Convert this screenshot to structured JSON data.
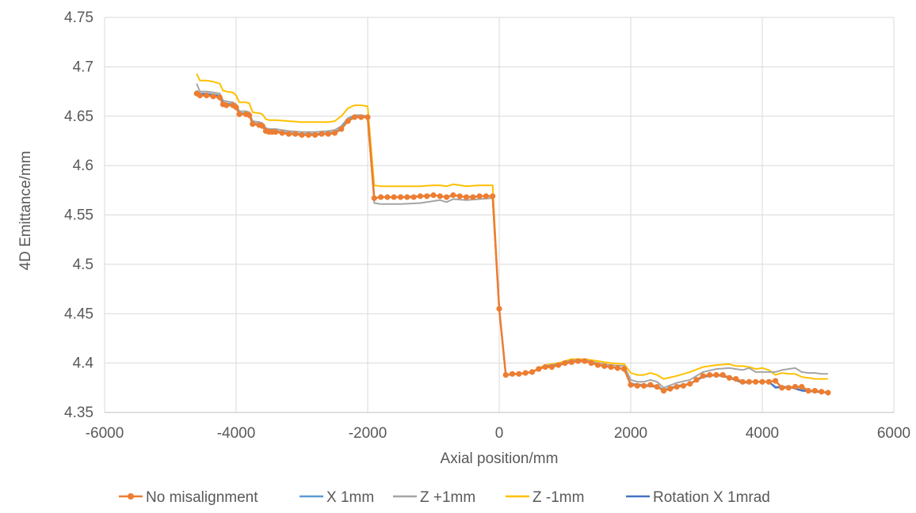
{
  "chart_data": {
    "type": "line",
    "title": "",
    "xlabel": "Axial position/mm",
    "ylabel": "4D Emittance/mm",
    "xlim": [
      -6000,
      6000
    ],
    "ylim": [
      4.35,
      4.75
    ],
    "x_ticks": [
      "-6000",
      "-4000",
      "-2000",
      "0",
      "2000",
      "4000",
      "6000"
    ],
    "y_ticks": [
      "4.35",
      "4.4",
      "4.45",
      "4.5",
      "4.55",
      "4.6",
      "4.65",
      "4.7",
      "4.75"
    ],
    "grid": "both",
    "legend_position": "bottom",
    "series": [
      {
        "name": "No misalignment",
        "color": "#ED7D31",
        "marker": "circle",
        "x": [
          -4600,
          -4550,
          -4450,
          -4350,
          -4250,
          -4200,
          -4150,
          -4050,
          -4000,
          -3950,
          -3850,
          -3800,
          -3750,
          -3650,
          -3600,
          -3550,
          -3500,
          -3450,
          -3400,
          -3300,
          -3200,
          -3100,
          -3000,
          -2900,
          -2800,
          -2700,
          -2600,
          -2500,
          -2400,
          -2300,
          -2200,
          -2100,
          -2000,
          -1900,
          -1800,
          -1700,
          -1600,
          -1500,
          -1400,
          -1300,
          -1200,
          -1100,
          -1000,
          -900,
          -800,
          -700,
          -600,
          -500,
          -400,
          -300,
          -200,
          -100,
          0,
          100,
          200,
          300,
          400,
          500,
          600,
          700,
          800,
          900,
          1000,
          1100,
          1200,
          1300,
          1400,
          1500,
          1600,
          1700,
          1800,
          1900,
          2000,
          2100,
          2200,
          2300,
          2400,
          2500,
          2600,
          2700,
          2800,
          2900,
          3000,
          3100,
          3200,
          3300,
          3400,
          3500,
          3600,
          3700,
          3800,
          3900,
          4000,
          4100,
          4200,
          4300,
          4400,
          4500,
          4600,
          4700,
          4800,
          4900,
          5000
        ],
        "y": [
          4.673,
          4.671,
          4.671,
          4.67,
          4.669,
          4.662,
          4.661,
          4.661,
          4.659,
          4.652,
          4.652,
          4.651,
          4.642,
          4.641,
          4.64,
          4.635,
          4.634,
          4.634,
          4.634,
          4.633,
          4.632,
          4.632,
          4.631,
          4.631,
          4.631,
          4.632,
          4.632,
          4.633,
          4.637,
          4.645,
          4.649,
          4.649,
          4.649,
          4.567,
          4.568,
          4.568,
          4.568,
          4.568,
          4.568,
          4.568,
          4.569,
          4.569,
          4.57,
          4.569,
          4.568,
          4.57,
          4.569,
          4.568,
          4.568,
          4.569,
          4.569,
          4.569,
          4.455,
          4.388,
          4.389,
          4.389,
          4.39,
          4.391,
          4.394,
          4.396,
          4.396,
          4.398,
          4.4,
          4.401,
          4.402,
          4.402,
          4.4,
          4.398,
          4.397,
          4.396,
          4.395,
          4.394,
          4.378,
          4.377,
          4.377,
          4.378,
          4.376,
          4.372,
          4.374,
          4.376,
          4.377,
          4.379,
          4.383,
          4.387,
          4.388,
          4.388,
          4.388,
          4.385,
          4.384,
          4.381,
          4.381,
          4.381,
          4.381,
          4.381,
          4.382,
          4.375,
          4.375,
          4.376,
          4.376,
          4.372,
          4.372,
          4.371,
          4.37
        ]
      },
      {
        "name": "X 1mm",
        "color": "#5B9BD5",
        "x": [
          -4600,
          -4550,
          -4450,
          -4350,
          -4250,
          -4200,
          -4150,
          -4050,
          -4000,
          -3950,
          -3850,
          -3800,
          -3750,
          -3650,
          -3600,
          -3550,
          -3500,
          -3400,
          -3200,
          -3000,
          -2800,
          -2600,
          -2500,
          -2400,
          -2300,
          -2200,
          -2100,
          -2000,
          -1900,
          -1800,
          -1500,
          -1200,
          -1000,
          -900,
          -800,
          -700,
          -500,
          -300,
          -100,
          0,
          100,
          300,
          500,
          600,
          700,
          900,
          1100,
          1300,
          1500,
          1700,
          1900,
          2000,
          2200,
          2400,
          2500,
          2700,
          2900,
          3100,
          3300,
          3500,
          3700,
          3900,
          4100,
          4200,
          4400,
          4600,
          4800,
          5000
        ],
        "y": [
          4.676,
          4.673,
          4.673,
          4.672,
          4.671,
          4.664,
          4.663,
          4.662,
          4.66,
          4.653,
          4.653,
          4.652,
          4.643,
          4.642,
          4.641,
          4.636,
          4.635,
          4.635,
          4.633,
          4.632,
          4.632,
          4.633,
          4.634,
          4.638,
          4.646,
          4.65,
          4.65,
          4.649,
          4.567,
          4.568,
          4.568,
          4.569,
          4.57,
          4.569,
          4.568,
          4.57,
          4.568,
          4.569,
          4.569,
          4.455,
          4.388,
          4.389,
          4.391,
          4.394,
          4.396,
          4.398,
          4.401,
          4.402,
          4.398,
          4.396,
          4.394,
          4.379,
          4.378,
          4.377,
          4.373,
          4.377,
          4.379,
          4.386,
          4.388,
          4.386,
          4.381,
          4.381,
          4.381,
          4.376,
          4.376,
          4.373,
          4.371,
          4.37
        ]
      },
      {
        "name": "Z +1mm",
        "color": "#A5A5A5",
        "x": [
          -4600,
          -4550,
          -4450,
          -4350,
          -4250,
          -4200,
          -4150,
          -4050,
          -4000,
          -3950,
          -3850,
          -3800,
          -3750,
          -3650,
          -3600,
          -3550,
          -3500,
          -3400,
          -3200,
          -3000,
          -2800,
          -2600,
          -2500,
          -2400,
          -2300,
          -2200,
          -2100,
          -2000,
          -1900,
          -1800,
          -1500,
          -1200,
          -1000,
          -900,
          -800,
          -700,
          -500,
          -300,
          -100,
          0,
          100,
          300,
          500,
          600,
          700,
          900,
          1100,
          1300,
          1500,
          1700,
          1900,
          2000,
          2100,
          2200,
          2300,
          2400,
          2500,
          2700,
          2900,
          3100,
          3300,
          3500,
          3600,
          3700,
          3800,
          3900,
          4000,
          4100,
          4200,
          4300,
          4400,
          4500,
          4600,
          4700,
          4800,
          4900,
          5000
        ],
        "y": [
          4.683,
          4.675,
          4.675,
          4.674,
          4.673,
          4.666,
          4.665,
          4.664,
          4.662,
          4.655,
          4.655,
          4.654,
          4.645,
          4.644,
          4.643,
          4.638,
          4.637,
          4.637,
          4.635,
          4.634,
          4.634,
          4.635,
          4.636,
          4.64,
          4.648,
          4.651,
          4.651,
          4.65,
          4.562,
          4.561,
          4.561,
          4.562,
          4.564,
          4.565,
          4.563,
          4.566,
          4.565,
          4.566,
          4.567,
          4.455,
          4.388,
          4.389,
          4.391,
          4.394,
          4.397,
          4.399,
          4.403,
          4.403,
          4.4,
          4.398,
          4.397,
          4.383,
          4.381,
          4.381,
          4.383,
          4.381,
          4.375,
          4.38,
          4.383,
          4.391,
          4.394,
          4.395,
          4.394,
          4.393,
          4.395,
          4.391,
          4.391,
          4.391,
          4.391,
          4.393,
          4.394,
          4.395,
          4.391,
          4.39,
          4.39,
          4.389,
          4.389
        ]
      },
      {
        "name": "Z -1mm",
        "color": "#FFC000",
        "x": [
          -4600,
          -4550,
          -4450,
          -4350,
          -4250,
          -4200,
          -4150,
          -4050,
          -4000,
          -3950,
          -3850,
          -3800,
          -3750,
          -3650,
          -3600,
          -3550,
          -3500,
          -3400,
          -3200,
          -3000,
          -2800,
          -2600,
          -2500,
          -2400,
          -2300,
          -2200,
          -2100,
          -2000,
          -1900,
          -1800,
          -1500,
          -1200,
          -1000,
          -900,
          -800,
          -700,
          -500,
          -300,
          -100,
          0,
          100,
          300,
          500,
          600,
          700,
          900,
          1100,
          1300,
          1500,
          1700,
          1900,
          2000,
          2100,
          2200,
          2300,
          2400,
          2500,
          2700,
          2900,
          3100,
          3300,
          3500,
          3600,
          3700,
          3800,
          3900,
          4000,
          4100,
          4200,
          4300,
          4400,
          4500,
          4600,
          4700,
          4800,
          4900,
          5000
        ],
        "y": [
          4.693,
          4.686,
          4.686,
          4.685,
          4.683,
          4.676,
          4.675,
          4.674,
          4.671,
          4.664,
          4.664,
          4.663,
          4.654,
          4.653,
          4.652,
          4.647,
          4.646,
          4.646,
          4.645,
          4.644,
          4.644,
          4.644,
          4.645,
          4.65,
          4.658,
          4.661,
          4.661,
          4.66,
          4.58,
          4.579,
          4.579,
          4.579,
          4.58,
          4.58,
          4.579,
          4.581,
          4.579,
          4.58,
          4.58,
          4.455,
          4.388,
          4.389,
          4.391,
          4.395,
          4.398,
          4.4,
          4.404,
          4.404,
          4.402,
          4.4,
          4.399,
          4.39,
          4.388,
          4.388,
          4.39,
          4.388,
          4.384,
          4.387,
          4.391,
          4.396,
          4.398,
          4.399,
          4.397,
          4.397,
          4.396,
          4.394,
          4.395,
          4.393,
          4.388,
          4.39,
          4.389,
          4.389,
          4.386,
          4.385,
          4.384,
          4.384,
          4.384
        ]
      },
      {
        "name": "Rotation X 1mrad",
        "color": "#4472C4",
        "x": [
          -4600,
          -4550,
          -4450,
          -4350,
          -4250,
          -4200,
          -4150,
          -4050,
          -4000,
          -3950,
          -3850,
          -3800,
          -3750,
          -3650,
          -3600,
          -3550,
          -3500,
          -3400,
          -3200,
          -3000,
          -2800,
          -2600,
          -2500,
          -2400,
          -2300,
          -2200,
          -2100,
          -2000,
          -1900,
          -1800,
          -1500,
          -1200,
          -1000,
          -900,
          -800,
          -700,
          -500,
          -300,
          -100,
          0,
          100,
          300,
          500,
          600,
          700,
          900,
          1100,
          1300,
          1500,
          1700,
          1900,
          2000,
          2200,
          2400,
          2500,
          2700,
          2900,
          3100,
          3300,
          3500,
          3700,
          3900,
          4100,
          4200,
          4400,
          4600,
          4800,
          5000
        ],
        "y": [
          4.674,
          4.672,
          4.672,
          4.671,
          4.67,
          4.663,
          4.662,
          4.661,
          4.659,
          4.652,
          4.652,
          4.651,
          4.642,
          4.641,
          4.64,
          4.635,
          4.634,
          4.634,
          4.632,
          4.631,
          4.631,
          4.632,
          4.633,
          4.637,
          4.645,
          4.649,
          4.649,
          4.649,
          4.567,
          4.568,
          4.568,
          4.569,
          4.57,
          4.569,
          4.568,
          4.57,
          4.568,
          4.569,
          4.569,
          4.455,
          4.388,
          4.389,
          4.391,
          4.394,
          4.396,
          4.398,
          4.401,
          4.402,
          4.398,
          4.396,
          4.394,
          4.378,
          4.377,
          4.376,
          4.372,
          4.376,
          4.379,
          4.386,
          4.388,
          4.385,
          4.38,
          4.381,
          4.381,
          4.375,
          4.376,
          4.372,
          4.371,
          4.37
        ]
      }
    ]
  }
}
